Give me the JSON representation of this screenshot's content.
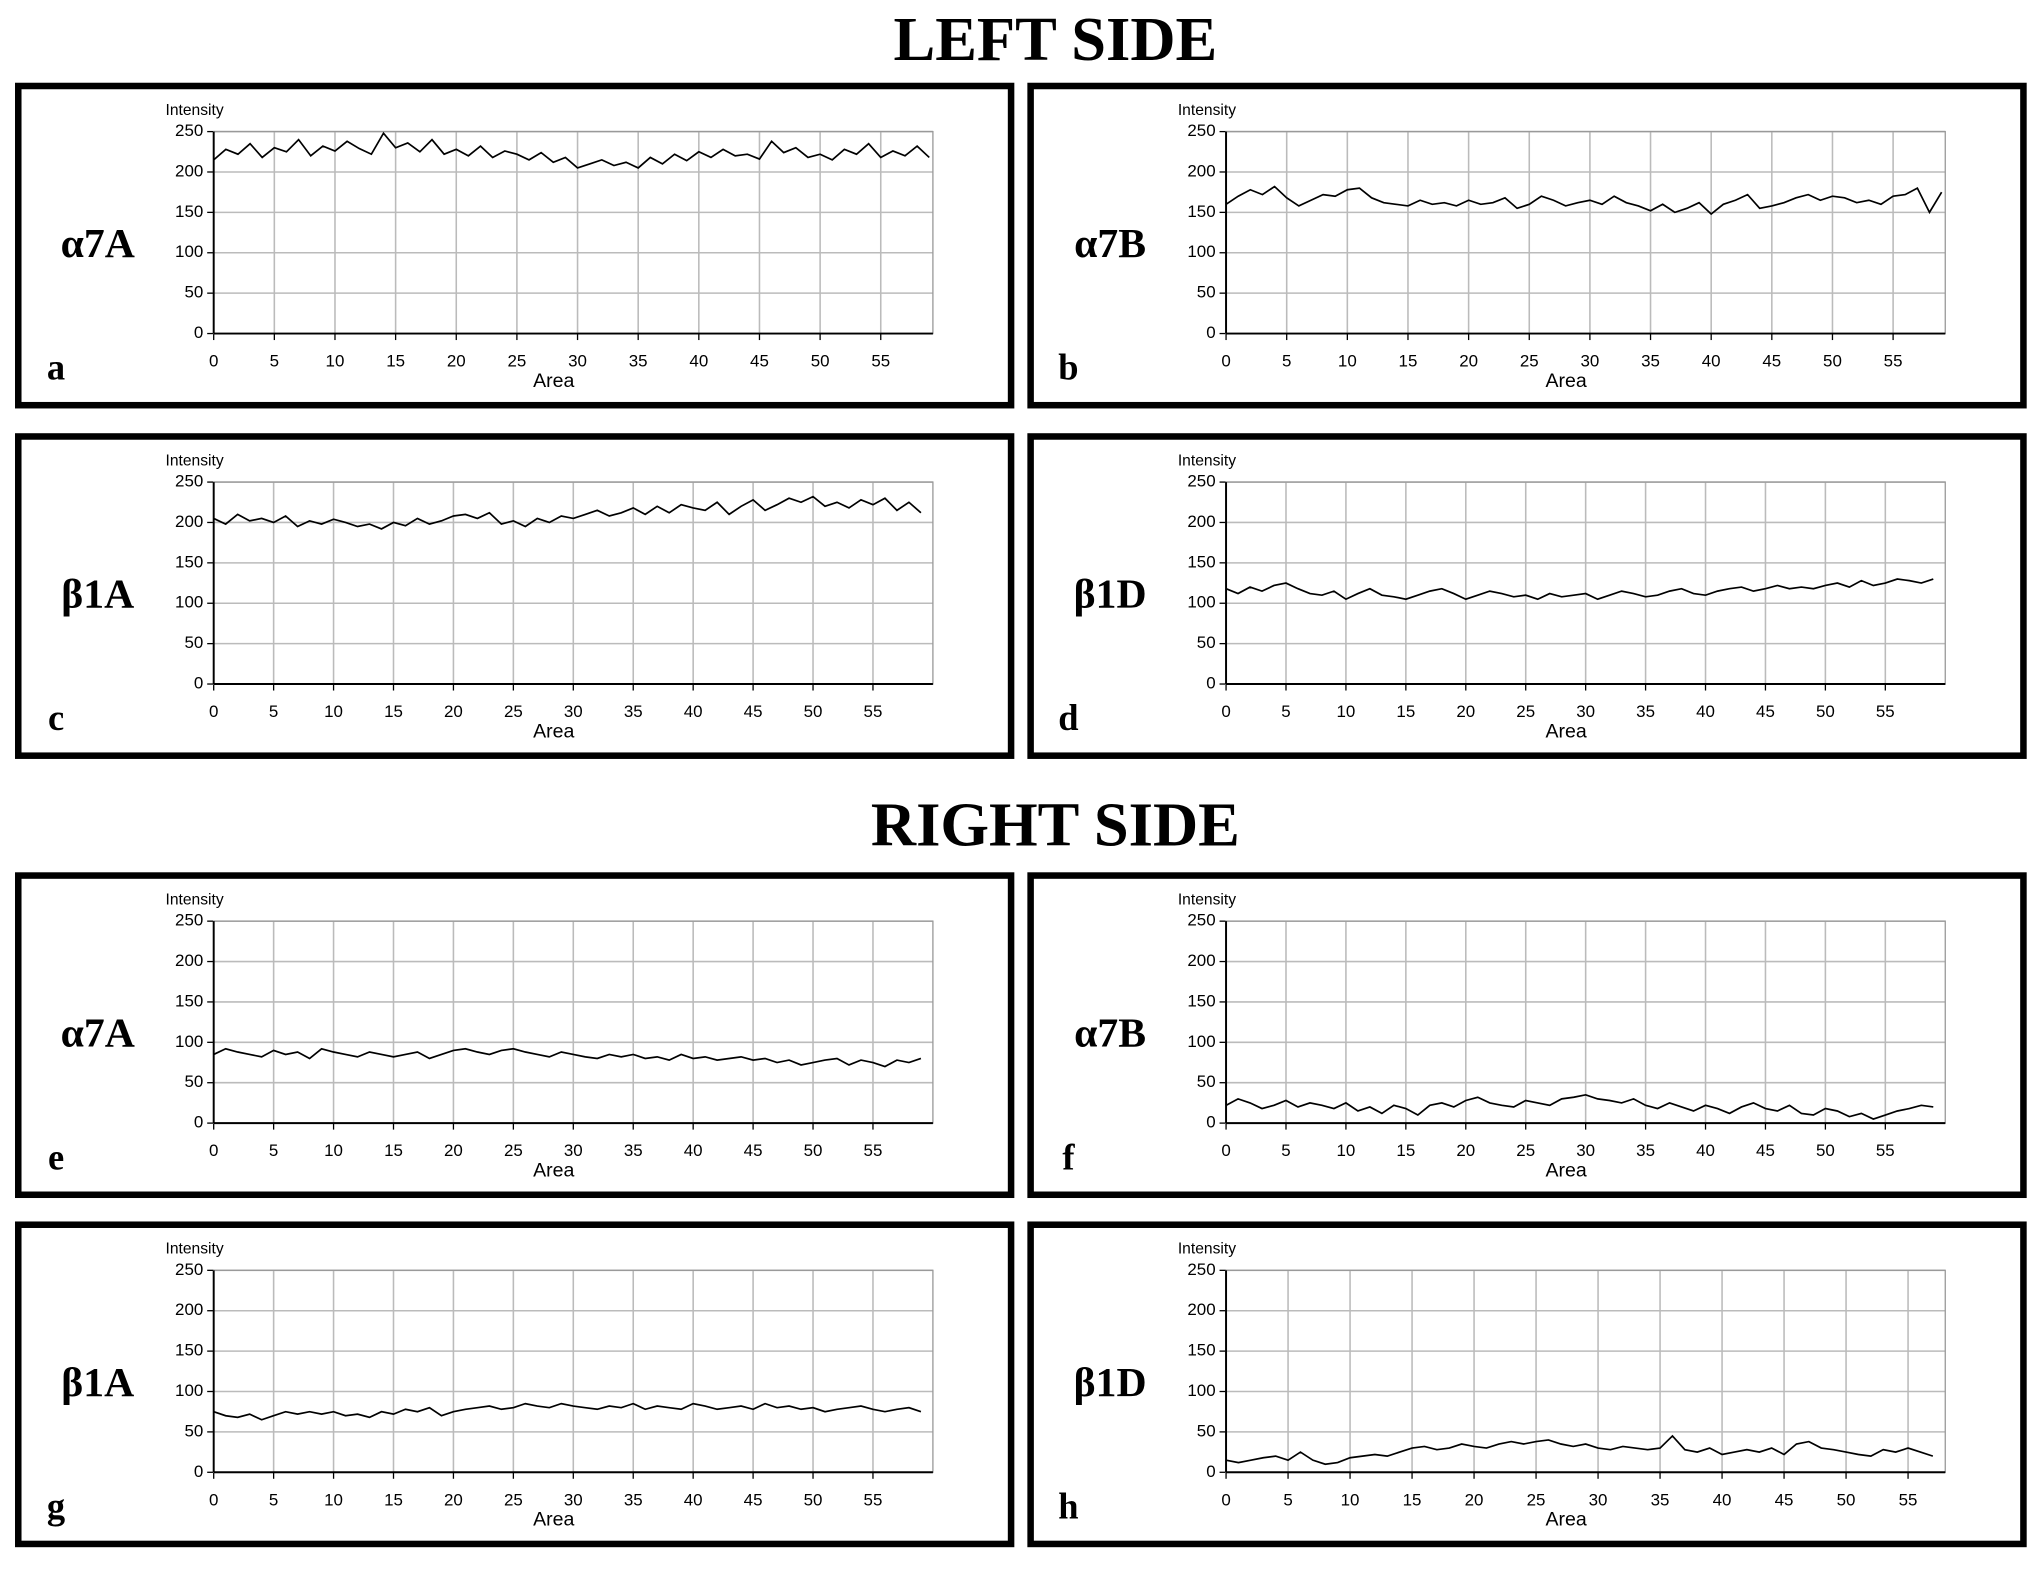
{
  "figure_titles": [
    "LEFT SIDE",
    "RIGHT SIDE"
  ],
  "chart_data": [
    {
      "type": "line",
      "label": "α7A",
      "panel": "a",
      "y_label": "Intensity",
      "x_label": "Area",
      "color": "#000000",
      "grid": true,
      "xlim": [
        0,
        59.3
      ],
      "ylim": [
        0,
        250
      ],
      "xticks": [
        0,
        5,
        10,
        15,
        20,
        25,
        30,
        35,
        40,
        45,
        50,
        55
      ],
      "yticks": [
        0,
        50,
        100,
        150,
        200,
        250
      ],
      "x": [
        0,
        1,
        2,
        3,
        4,
        5,
        6,
        7,
        8,
        9,
        10,
        11,
        12,
        13,
        14,
        15,
        16,
        17,
        18,
        19,
        20,
        21,
        22,
        23,
        24,
        25,
        26,
        27,
        28,
        29,
        30,
        31,
        32,
        33,
        34,
        35,
        36,
        37,
        38,
        39,
        40,
        41,
        42,
        43,
        44,
        45,
        46,
        47,
        48,
        49,
        50,
        51,
        52,
        53,
        54,
        55,
        56,
        57,
        58,
        59
      ],
      "values": [
        215,
        228,
        222,
        235,
        218,
        230,
        225,
        240,
        220,
        232,
        226,
        238,
        229,
        222,
        248,
        230,
        236,
        225,
        240,
        222,
        228,
        220,
        232,
        218,
        226,
        222,
        215,
        224,
        212,
        218,
        205,
        210,
        215,
        208,
        212,
        205,
        218,
        210,
        222,
        214,
        225,
        218,
        228,
        220,
        222,
        216,
        238,
        224,
        230,
        218,
        222,
        215,
        228,
        222,
        235,
        218,
        226,
        220,
        232,
        218
      ]
    },
    {
      "type": "line",
      "label": "α7B",
      "panel": "b",
      "y_label": "Intensity",
      "x_label": "Area",
      "color": "#000000",
      "grid": true,
      "xlim": [
        0,
        59.3
      ],
      "ylim": [
        0,
        250
      ],
      "xticks": [
        0,
        5,
        10,
        15,
        20,
        25,
        30,
        35,
        40,
        45,
        50,
        55
      ],
      "yticks": [
        0,
        50,
        100,
        150,
        200,
        250
      ],
      "x": [
        0,
        1,
        2,
        3,
        4,
        5,
        6,
        7,
        8,
        9,
        10,
        11,
        12,
        13,
        14,
        15,
        16,
        17,
        18,
        19,
        20,
        21,
        22,
        23,
        24,
        25,
        26,
        27,
        28,
        29,
        30,
        31,
        32,
        33,
        34,
        35,
        36,
        37,
        38,
        39,
        40,
        41,
        42,
        43,
        44,
        45,
        46,
        47,
        48,
        49,
        50,
        51,
        52,
        53,
        54,
        55,
        56,
        57,
        58,
        59
      ],
      "values": [
        160,
        170,
        178,
        172,
        182,
        168,
        158,
        165,
        172,
        170,
        178,
        180,
        168,
        162,
        160,
        158,
        165,
        160,
        162,
        158,
        165,
        160,
        162,
        168,
        155,
        160,
        170,
        165,
        158,
        162,
        165,
        160,
        170,
        162,
        158,
        152,
        160,
        150,
        155,
        162,
        148,
        160,
        165,
        172,
        155,
        158,
        162,
        168,
        172,
        165,
        170,
        168,
        162,
        165,
        160,
        170,
        172,
        180,
        150,
        175
      ]
    },
    {
      "type": "line",
      "label": "β1A",
      "panel": "c",
      "y_label": "Intensity",
      "x_label": "Area",
      "color": "#000000",
      "grid": true,
      "xlim": [
        0,
        60
      ],
      "ylim": [
        0,
        250
      ],
      "xticks": [
        0,
        5,
        10,
        15,
        20,
        25,
        30,
        35,
        40,
        45,
        50,
        55
      ],
      "yticks": [
        0,
        50,
        100,
        150,
        200,
        250
      ],
      "x": [
        0,
        1,
        2,
        3,
        4,
        5,
        6,
        7,
        8,
        9,
        10,
        11,
        12,
        13,
        14,
        15,
        16,
        17,
        18,
        19,
        20,
        21,
        22,
        23,
        24,
        25,
        26,
        27,
        28,
        29,
        30,
        31,
        32,
        33,
        34,
        35,
        36,
        37,
        38,
        39,
        40,
        41,
        42,
        43,
        44,
        45,
        46,
        47,
        48,
        49,
        50,
        51,
        52,
        53,
        54,
        55,
        56,
        57,
        58,
        59
      ],
      "values": [
        205,
        198,
        210,
        202,
        205,
        200,
        208,
        195,
        202,
        198,
        204,
        200,
        195,
        198,
        192,
        200,
        196,
        205,
        198,
        202,
        208,
        210,
        205,
        212,
        198,
        202,
        195,
        205,
        200,
        208,
        205,
        210,
        215,
        208,
        212,
        218,
        210,
        220,
        212,
        222,
        218,
        215,
        225,
        210,
        220,
        228,
        215,
        222,
        230,
        225,
        232,
        220,
        225,
        218,
        228,
        222,
        230,
        215,
        225,
        212
      ]
    },
    {
      "type": "line",
      "label": "β1D",
      "panel": "d",
      "y_label": "Intensity",
      "x_label": "Area",
      "color": "#000000",
      "grid": true,
      "xlim": [
        0,
        60
      ],
      "ylim": [
        0,
        250
      ],
      "xticks": [
        0,
        5,
        10,
        15,
        20,
        25,
        30,
        35,
        40,
        45,
        50,
        55
      ],
      "yticks": [
        0,
        50,
        100,
        150,
        200,
        250
      ],
      "x": [
        0,
        1,
        2,
        3,
        4,
        5,
        6,
        7,
        8,
        9,
        10,
        11,
        12,
        13,
        14,
        15,
        16,
        17,
        18,
        19,
        20,
        21,
        22,
        23,
        24,
        25,
        26,
        27,
        28,
        29,
        30,
        31,
        32,
        33,
        34,
        35,
        36,
        37,
        38,
        39,
        40,
        41,
        42,
        43,
        44,
        45,
        46,
        47,
        48,
        49,
        50,
        51,
        52,
        53,
        54,
        55,
        56,
        57,
        58,
        59
      ],
      "values": [
        118,
        112,
        120,
        115,
        122,
        125,
        118,
        112,
        110,
        115,
        105,
        112,
        118,
        110,
        108,
        105,
        110,
        115,
        118,
        112,
        105,
        110,
        115,
        112,
        108,
        110,
        105,
        112,
        108,
        110,
        112,
        105,
        110,
        115,
        112,
        108,
        110,
        115,
        118,
        112,
        110,
        115,
        118,
        120,
        115,
        118,
        122,
        118,
        120,
        118,
        122,
        125,
        120,
        128,
        122,
        125,
        130,
        128,
        125,
        130
      ]
    },
    {
      "type": "line",
      "label": "α7A",
      "panel": "e",
      "y_label": "Intensity",
      "x_label": "Area",
      "color": "#000000",
      "grid": true,
      "xlim": [
        0,
        60
      ],
      "ylim": [
        0,
        250
      ],
      "xticks": [
        0,
        5,
        10,
        15,
        20,
        25,
        30,
        35,
        40,
        45,
        50,
        55
      ],
      "yticks": [
        0,
        50,
        100,
        150,
        200,
        250
      ],
      "x": [
        0,
        1,
        2,
        3,
        4,
        5,
        6,
        7,
        8,
        9,
        10,
        11,
        12,
        13,
        14,
        15,
        16,
        17,
        18,
        19,
        20,
        21,
        22,
        23,
        24,
        25,
        26,
        27,
        28,
        29,
        30,
        31,
        32,
        33,
        34,
        35,
        36,
        37,
        38,
        39,
        40,
        41,
        42,
        43,
        44,
        45,
        46,
        47,
        48,
        49,
        50,
        51,
        52,
        53,
        54,
        55,
        56,
        57,
        58,
        59
      ],
      "values": [
        85,
        92,
        88,
        85,
        82,
        90,
        85,
        88,
        80,
        92,
        88,
        85,
        82,
        88,
        85,
        82,
        85,
        88,
        80,
        85,
        90,
        92,
        88,
        85,
        90,
        92,
        88,
        85,
        82,
        88,
        85,
        82,
        80,
        85,
        82,
        85,
        80,
        82,
        78,
        85,
        80,
        82,
        78,
        80,
        82,
        78,
        80,
        75,
        78,
        72,
        75,
        78,
        80,
        72,
        78,
        75,
        70,
        78,
        75,
        80
      ]
    },
    {
      "type": "line",
      "label": "α7B",
      "panel": "f",
      "y_label": "Intensity",
      "x_label": "Area",
      "color": "#000000",
      "grid": true,
      "xlim": [
        0,
        60
      ],
      "ylim": [
        0,
        250
      ],
      "xticks": [
        0,
        5,
        10,
        15,
        20,
        25,
        30,
        35,
        40,
        45,
        50,
        55
      ],
      "yticks": [
        0,
        50,
        100,
        150,
        200,
        250
      ],
      "x": [
        0,
        1,
        2,
        3,
        4,
        5,
        6,
        7,
        8,
        9,
        10,
        11,
        12,
        13,
        14,
        15,
        16,
        17,
        18,
        19,
        20,
        21,
        22,
        23,
        24,
        25,
        26,
        27,
        28,
        29,
        30,
        31,
        32,
        33,
        34,
        35,
        36,
        37,
        38,
        39,
        40,
        41,
        42,
        43,
        44,
        45,
        46,
        47,
        48,
        49,
        50,
        51,
        52,
        53,
        54,
        55,
        56,
        57,
        58,
        59
      ],
      "values": [
        22,
        30,
        25,
        18,
        22,
        28,
        20,
        25,
        22,
        18,
        25,
        15,
        20,
        12,
        22,
        18,
        10,
        22,
        25,
        20,
        28,
        32,
        25,
        22,
        20,
        28,
        25,
        22,
        30,
        32,
        35,
        30,
        28,
        25,
        30,
        22,
        18,
        25,
        20,
        15,
        22,
        18,
        12,
        20,
        25,
        18,
        15,
        22,
        12,
        10,
        18,
        15,
        8,
        12,
        5,
        10,
        15,
        18,
        22,
        20
      ]
    },
    {
      "type": "line",
      "label": "β1A",
      "panel": "g",
      "y_label": "Intensity",
      "x_label": "Area",
      "color": "#000000",
      "grid": true,
      "xlim": [
        0,
        60
      ],
      "ylim": [
        0,
        250
      ],
      "xticks": [
        0,
        5,
        10,
        15,
        20,
        25,
        30,
        35,
        40,
        45,
        50,
        55
      ],
      "yticks": [
        0,
        50,
        100,
        150,
        200,
        250
      ],
      "x": [
        0,
        1,
        2,
        3,
        4,
        5,
        6,
        7,
        8,
        9,
        10,
        11,
        12,
        13,
        14,
        15,
        16,
        17,
        18,
        19,
        20,
        21,
        22,
        23,
        24,
        25,
        26,
        27,
        28,
        29,
        30,
        31,
        32,
        33,
        34,
        35,
        36,
        37,
        38,
        39,
        40,
        41,
        42,
        43,
        44,
        45,
        46,
        47,
        48,
        49,
        50,
        51,
        52,
        53,
        54,
        55,
        56,
        57,
        58,
        59
      ],
      "values": [
        75,
        70,
        68,
        72,
        65,
        70,
        75,
        72,
        75,
        72,
        75,
        70,
        72,
        68,
        75,
        72,
        78,
        75,
        80,
        70,
        75,
        78,
        80,
        82,
        78,
        80,
        85,
        82,
        80,
        85,
        82,
        80,
        78,
        82,
        80,
        85,
        78,
        82,
        80,
        78,
        85,
        82,
        78,
        80,
        82,
        78,
        85,
        80,
        82,
        78,
        80,
        75,
        78,
        80,
        82,
        78,
        75,
        78,
        80,
        75
      ]
    },
    {
      "type": "line",
      "label": "β1D",
      "panel": "h",
      "y_label": "Intensity",
      "x_label": "Area",
      "color": "#000000",
      "grid": true,
      "xlim": [
        0,
        58
      ],
      "ylim": [
        0,
        250
      ],
      "xticks": [
        0,
        5,
        10,
        15,
        20,
        25,
        30,
        35,
        40,
        45,
        50,
        55
      ],
      "yticks": [
        0,
        50,
        100,
        150,
        200,
        250
      ],
      "x": [
        0,
        1,
        2,
        3,
        4,
        5,
        6,
        7,
        8,
        9,
        10,
        11,
        12,
        13,
        14,
        15,
        16,
        17,
        18,
        19,
        20,
        21,
        22,
        23,
        24,
        25,
        26,
        27,
        28,
        29,
        30,
        31,
        32,
        33,
        34,
        35,
        36,
        37,
        38,
        39,
        40,
        41,
        42,
        43,
        44,
        45,
        46,
        47,
        48,
        49,
        50,
        51,
        52,
        53,
        54,
        55,
        56,
        57
      ],
      "values": [
        15,
        12,
        15,
        18,
        20,
        15,
        25,
        15,
        10,
        12,
        18,
        20,
        22,
        20,
        25,
        30,
        32,
        28,
        30,
        35,
        32,
        30,
        35,
        38,
        35,
        38,
        40,
        35,
        32,
        35,
        30,
        28,
        32,
        30,
        28,
        30,
        45,
        28,
        25,
        30,
        22,
        25,
        28,
        25,
        30,
        22,
        35,
        38,
        30,
        28,
        25,
        22,
        20,
        28,
        25,
        30,
        25,
        20
      ]
    }
  ]
}
